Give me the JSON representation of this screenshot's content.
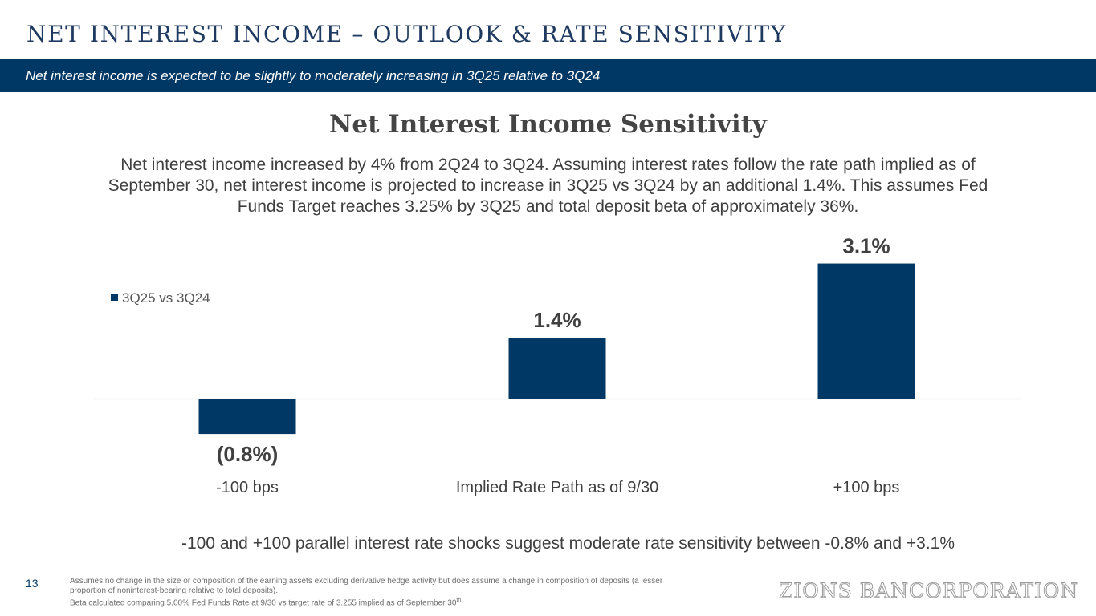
{
  "slide": {
    "title": "NET INTEREST INCOME – OUTLOOK & RATE SENSITIVITY",
    "banner": "Net interest income is expected to be slightly to moderately increasing in 3Q25 relative to 3Q24",
    "description": "Net interest income increased by 4% from 2Q24 to 3Q24. Assuming interest rates follow the rate path implied as of September 30, net interest income is projected to increase in 3Q25 vs 3Q24 by an additional 1.4%. This assumes Fed Funds Target reaches 3.25% by 3Q25 and total deposit beta of approximately 36%.",
    "conclusion": "-100 and +100 parallel interest rate shocks suggest moderate rate sensitivity between -0.8% and +3.1%"
  },
  "footer": {
    "page_number": "13",
    "note_1": "Assumes no change in the size or composition of the earning assets excluding derivative hedge activity but does assume a change in composition of deposits (a lesser proportion of noninterest-bearing relative to total deposits).",
    "note_2": "Beta calculated comparing 5.00% Fed Funds Rate at 9/30 vs target rate of 3.255 implied as of September 30",
    "note_2_sup": "th",
    "logo": "ZIONS BANCORPORATION"
  },
  "colors": {
    "bar": "#003865",
    "banner": "#003865",
    "title": "#1f3a60"
  },
  "chart_data": {
    "type": "bar",
    "title": "Net Interest Income Sensitivity",
    "categories": [
      "-100 bps",
      "Implied Rate Path as of 9/30",
      "+100 bps"
    ],
    "series": [
      {
        "name": "3Q25 vs 3Q24",
        "values": [
          -0.8,
          1.4,
          3.1
        ]
      }
    ],
    "data_labels": [
      "(0.8%)",
      "1.4%",
      "3.1%"
    ],
    "legend_position": "top-left",
    "grid": false,
    "ylim": [
      -0.8,
      3.1
    ]
  }
}
